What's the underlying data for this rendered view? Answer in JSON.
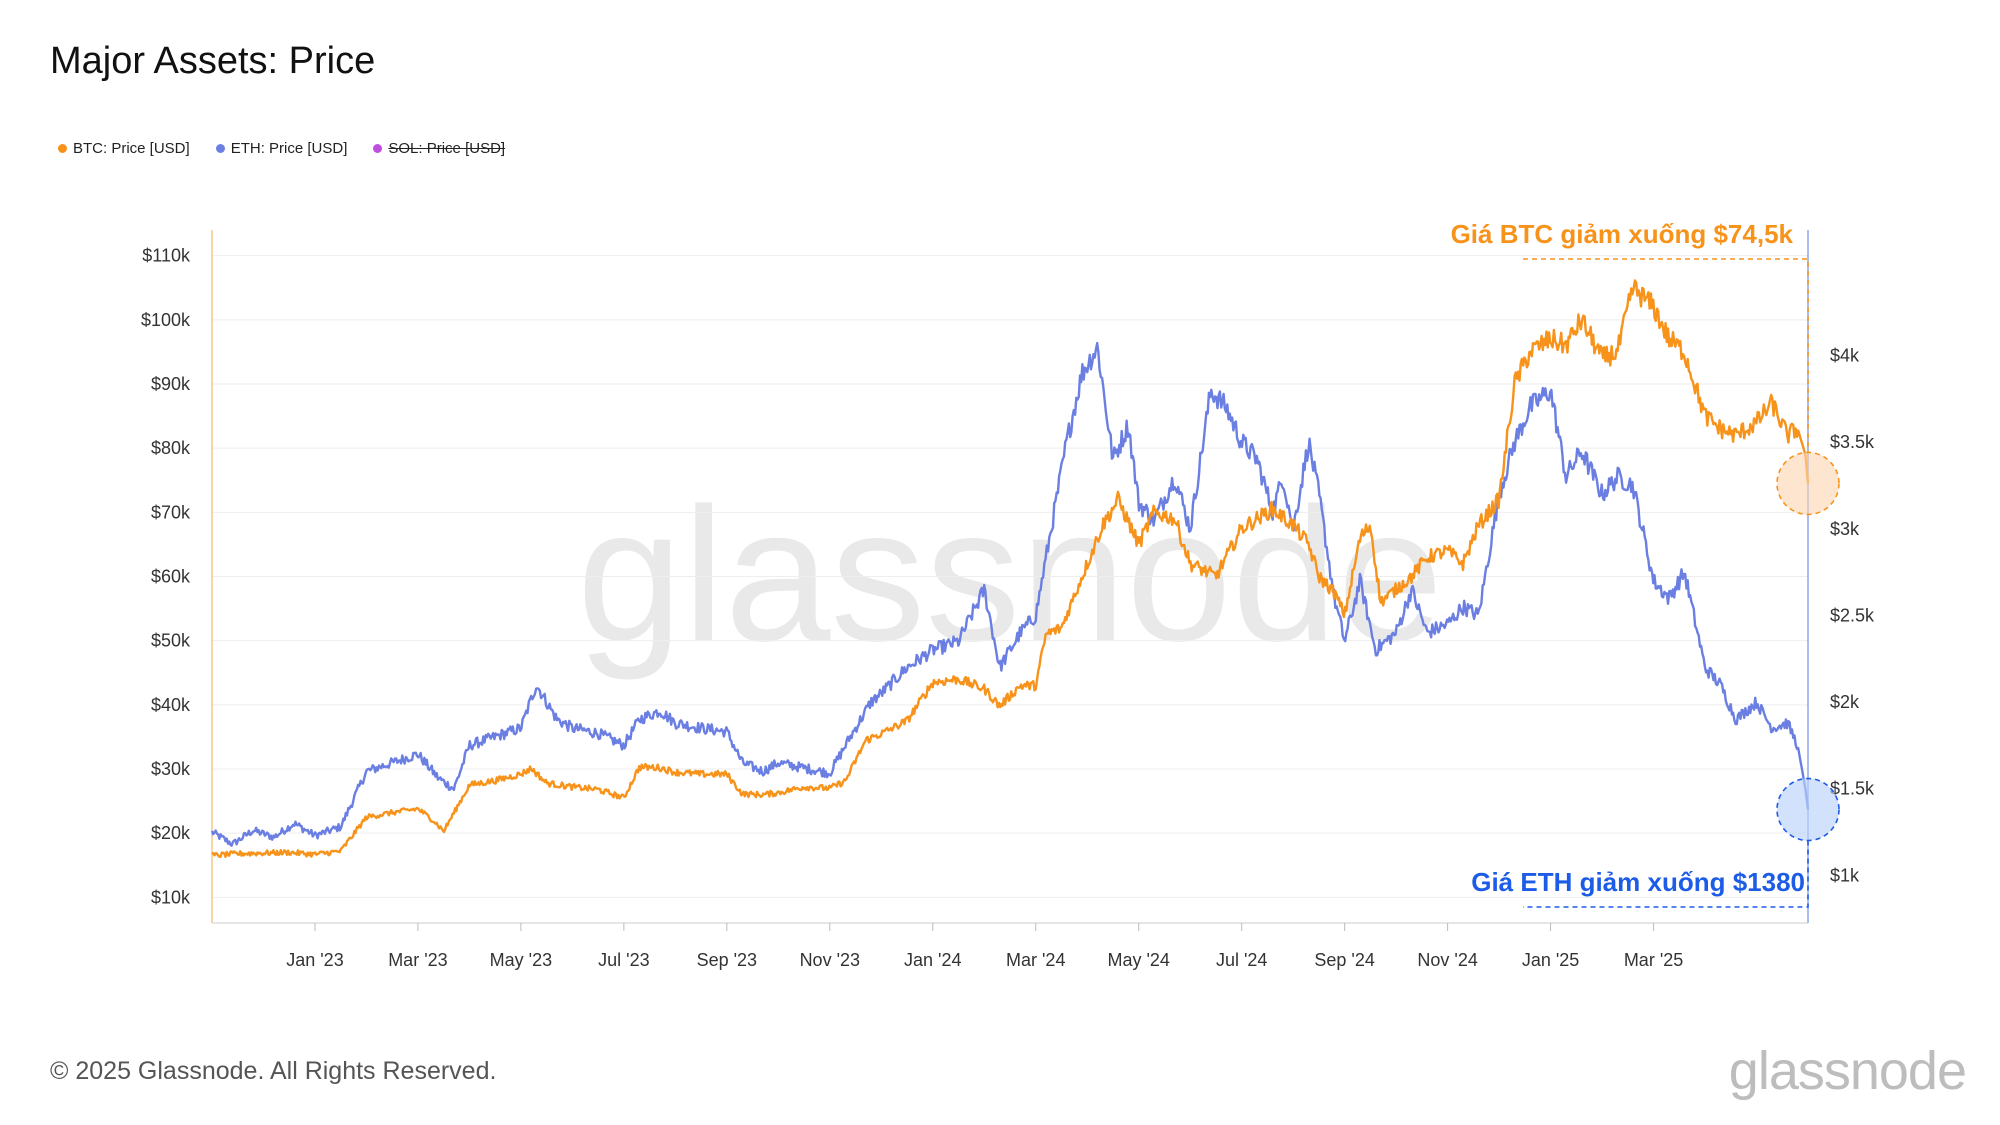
{
  "title": "Major Assets: Price",
  "legend": [
    {
      "label": "BTC: Price [USD]",
      "color": "#f7931a",
      "visible": true
    },
    {
      "label": "ETH: Price [USD]",
      "color": "#6b7fe3",
      "visible": true
    },
    {
      "label": "SOL: Price [USD]",
      "color": "#c04fe0",
      "visible": false
    }
  ],
  "footer": "© 2025 Glassnode. All Rights Reserved.",
  "brand": "glassnode",
  "chart_data": {
    "type": "line",
    "title": "Major Assets: Price",
    "watermark": "glassnode",
    "x_start": "2022-11",
    "x_end": "2025-04",
    "x_ticks": [
      "Jan '23",
      "Mar '23",
      "May '23",
      "Jul '23",
      "Sep '23",
      "Nov '23",
      "Jan '24",
      "Mar '24",
      "May '24",
      "Jul '24",
      "Sep '24",
      "Nov '24",
      "Jan '25",
      "Mar '25"
    ],
    "x_tick_months": [
      2,
      4,
      6,
      8,
      10,
      12,
      14,
      16,
      18,
      20,
      22,
      24,
      26,
      28
    ],
    "y_left": {
      "min": 6000,
      "max": 114000,
      "ticks": [
        10000,
        20000,
        30000,
        40000,
        50000,
        60000,
        70000,
        80000,
        90000,
        100000,
        110000
      ],
      "tick_labels": [
        "$10k",
        "$20k",
        "$30k",
        "$40k",
        "$50k",
        "$60k",
        "$70k",
        "$80k",
        "$90k",
        "$100k",
        "$110k"
      ]
    },
    "y_right": {
      "min": 725,
      "max": 4725,
      "ticks": [
        1000,
        1500,
        2000,
        2500,
        3000,
        3500,
        4000
      ],
      "tick_labels": [
        "$1k",
        "$1.5k",
        "$2k",
        "$2.5k",
        "$3k",
        "$3.5k",
        "$4k"
      ]
    },
    "series": [
      {
        "name": "BTC: Price [USD]",
        "axis": "left",
        "color": "#f7931a",
        "points": [
          [
            0.0,
            16500
          ],
          [
            0.5,
            16800
          ],
          [
            1.0,
            16900
          ],
          [
            1.5,
            17000
          ],
          [
            2.0,
            16700
          ],
          [
            2.5,
            17200
          ],
          [
            3.0,
            22500
          ],
          [
            3.5,
            23200
          ],
          [
            4.0,
            23800
          ],
          [
            4.3,
            22000
          ],
          [
            4.5,
            20300
          ],
          [
            5.0,
            27500
          ],
          [
            5.5,
            28200
          ],
          [
            6.0,
            29200
          ],
          [
            6.2,
            30100
          ],
          [
            6.5,
            27800
          ],
          [
            7.0,
            27200
          ],
          [
            7.5,
            26800
          ],
          [
            8.0,
            25500
          ],
          [
            8.3,
            30300
          ],
          [
            8.7,
            30200
          ],
          [
            9.0,
            29500
          ],
          [
            9.5,
            29200
          ],
          [
            10.0,
            29200
          ],
          [
            10.3,
            26100
          ],
          [
            10.7,
            26000
          ],
          [
            11.0,
            26300
          ],
          [
            11.5,
            27200
          ],
          [
            12.0,
            27000
          ],
          [
            12.3,
            28100
          ],
          [
            12.7,
            34500
          ],
          [
            13.0,
            35500
          ],
          [
            13.5,
            37500
          ],
          [
            14.0,
            43500
          ],
          [
            14.5,
            44000
          ],
          [
            15.0,
            42500
          ],
          [
            15.3,
            39800
          ],
          [
            15.7,
            43000
          ],
          [
            16.0,
            43000
          ],
          [
            16.2,
            51000
          ],
          [
            16.5,
            52000
          ],
          [
            17.0,
            62000
          ],
          [
            17.3,
            68000
          ],
          [
            17.6,
            72000
          ],
          [
            18.0,
            65000
          ],
          [
            18.3,
            70000
          ],
          [
            18.7,
            69000
          ],
          [
            19.0,
            62000
          ],
          [
            19.5,
            60000
          ],
          [
            20.0,
            67500
          ],
          [
            20.3,
            69000
          ],
          [
            20.6,
            70500
          ],
          [
            21.0,
            68000
          ],
          [
            21.3,
            65000
          ],
          [
            21.5,
            60000
          ],
          [
            21.8,
            57500
          ],
          [
            22.0,
            54000
          ],
          [
            22.3,
            66000
          ],
          [
            22.5,
            68000
          ],
          [
            22.7,
            56000
          ],
          [
            23.0,
            58000
          ],
          [
            23.3,
            60000
          ],
          [
            23.6,
            63000
          ],
          [
            24.0,
            64000
          ],
          [
            24.3,
            62000
          ],
          [
            24.6,
            68000
          ],
          [
            25.0,
            72000
          ],
          [
            25.3,
            90000
          ],
          [
            25.6,
            95000
          ],
          [
            26.0,
            97000
          ],
          [
            26.3,
            96000
          ],
          [
            26.6,
            100000
          ],
          [
            27.0,
            94000
          ],
          [
            27.3,
            95000
          ],
          [
            27.6,
            105000
          ],
          [
            28.0,
            102000
          ],
          [
            28.3,
            97000
          ],
          [
            28.6,
            95000
          ],
          [
            29.0,
            85000
          ],
          [
            29.3,
            83000
          ],
          [
            29.6,
            82000
          ],
          [
            30.0,
            84000
          ],
          [
            30.3,
            87000
          ],
          [
            30.6,
            82000
          ],
          [
            30.8,
            83000
          ],
          [
            30.95,
            79000
          ],
          [
            31.0,
            74500
          ]
        ]
      },
      {
        "name": "ETH: Price [USD]",
        "axis": "right",
        "color": "#6b7fe3",
        "points": [
          [
            0.0,
            1250
          ],
          [
            0.4,
            1180
          ],
          [
            0.8,
            1260
          ],
          [
            1.2,
            1220
          ],
          [
            1.6,
            1300
          ],
          [
            2.0,
            1230
          ],
          [
            2.5,
            1280
          ],
          [
            3.0,
            1600
          ],
          [
            3.5,
            1650
          ],
          [
            4.0,
            1700
          ],
          [
            4.4,
            1560
          ],
          [
            4.7,
            1500
          ],
          [
            5.0,
            1750
          ],
          [
            5.5,
            1800
          ],
          [
            6.0,
            1850
          ],
          [
            6.3,
            2100
          ],
          [
            6.7,
            1900
          ],
          [
            7.0,
            1850
          ],
          [
            7.5,
            1820
          ],
          [
            8.0,
            1750
          ],
          [
            8.3,
            1900
          ],
          [
            8.7,
            1950
          ],
          [
            9.0,
            1880
          ],
          [
            9.5,
            1850
          ],
          [
            10.0,
            1830
          ],
          [
            10.3,
            1650
          ],
          [
            10.7,
            1600
          ],
          [
            11.0,
            1650
          ],
          [
            11.5,
            1620
          ],
          [
            12.0,
            1590
          ],
          [
            12.4,
            1800
          ],
          [
            12.8,
            2000
          ],
          [
            13.0,
            2050
          ],
          [
            13.5,
            2200
          ],
          [
            14.0,
            2300
          ],
          [
            14.5,
            2350
          ],
          [
            15.0,
            2650
          ],
          [
            15.3,
            2200
          ],
          [
            15.7,
            2400
          ],
          [
            16.0,
            2500
          ],
          [
            16.3,
            3000
          ],
          [
            16.6,
            3500
          ],
          [
            16.9,
            3900
          ],
          [
            17.2,
            4050
          ],
          [
            17.5,
            3400
          ],
          [
            17.8,
            3600
          ],
          [
            18.0,
            3150
          ],
          [
            18.3,
            3050
          ],
          [
            18.7,
            3300
          ],
          [
            19.0,
            3000
          ],
          [
            19.4,
            3800
          ],
          [
            19.7,
            3700
          ],
          [
            20.0,
            3500
          ],
          [
            20.3,
            3400
          ],
          [
            20.6,
            3100
          ],
          [
            20.8,
            3300
          ],
          [
            21.0,
            3000
          ],
          [
            21.3,
            3500
          ],
          [
            21.5,
            3200
          ],
          [
            21.8,
            2600
          ],
          [
            22.0,
            2350
          ],
          [
            22.3,
            2700
          ],
          [
            22.6,
            2300
          ],
          [
            23.0,
            2400
          ],
          [
            23.3,
            2650
          ],
          [
            23.6,
            2400
          ],
          [
            24.0,
            2450
          ],
          [
            24.3,
            2550
          ],
          [
            24.6,
            2500
          ],
          [
            25.0,
            3200
          ],
          [
            25.3,
            3500
          ],
          [
            25.6,
            3700
          ],
          [
            26.0,
            3800
          ],
          [
            26.3,
            3300
          ],
          [
            26.6,
            3450
          ],
          [
            27.0,
            3200
          ],
          [
            27.3,
            3300
          ],
          [
            27.6,
            3250
          ],
          [
            28.0,
            2700
          ],
          [
            28.3,
            2600
          ],
          [
            28.6,
            2750
          ],
          [
            29.0,
            2200
          ],
          [
            29.3,
            2100
          ],
          [
            29.6,
            1900
          ],
          [
            30.0,
            2000
          ],
          [
            30.3,
            1850
          ],
          [
            30.6,
            1880
          ],
          [
            30.8,
            1750
          ],
          [
            30.95,
            1500
          ],
          [
            31.0,
            1380
          ]
        ]
      },
      {
        "name": "SOL: Price [USD]",
        "axis": "right",
        "color": "#c04fe0",
        "visible": false,
        "points": []
      }
    ],
    "annotations": [
      {
        "text": "Giá BTC giảm xuống $74,5k",
        "color": "#f7931a",
        "series": "BTC: Price [USD]",
        "value": 74500,
        "label_position": "top-right"
      },
      {
        "text": "Giá ETH giảm xuống $1380",
        "color": "#1d5ce6",
        "series": "ETH: Price [USD]",
        "value": 1380,
        "label_position": "bottom-right"
      }
    ]
  }
}
